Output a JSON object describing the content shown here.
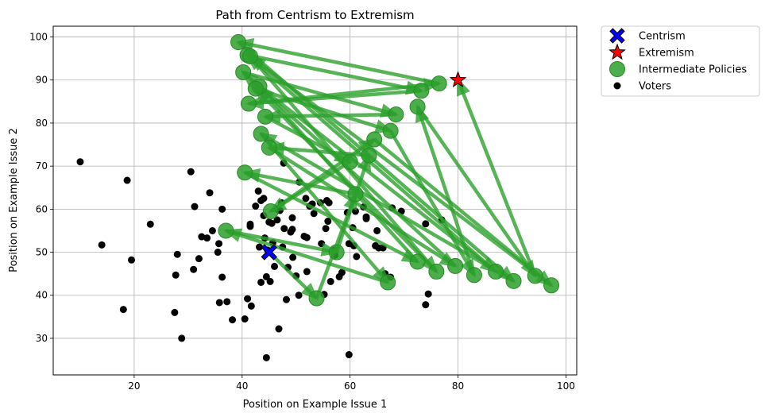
{
  "chart_data": {
    "type": "scatter",
    "title": "Path from Centrism to Extremism",
    "xlabel": "Position on Example Issue 1",
    "ylabel": "Position on Example Issue 2",
    "xlim": [
      5,
      102
    ],
    "ylim": [
      21.5,
      102.5
    ],
    "xticks": [
      20,
      40,
      60,
      80,
      100
    ],
    "yticks": [
      30,
      40,
      50,
      60,
      70,
      80,
      90,
      100
    ],
    "grid": true,
    "legend_position": "outside-top-right",
    "colors": {
      "centrism": "#0000ff",
      "extremism": "#ff0000",
      "intermediate": "#2ca02c",
      "voters": "#000000"
    },
    "legend": [
      {
        "key": "centrism",
        "label": "Centrism"
      },
      {
        "key": "extremism",
        "label": "Extremism"
      },
      {
        "key": "intermediate",
        "label": "Intermediate Policies"
      },
      {
        "key": "voters",
        "label": "Voters"
      }
    ],
    "centrism": [
      45,
      50
    ],
    "extremism": [
      80,
      90
    ],
    "path": [
      [
        45,
        50
      ],
      [
        53.8,
        39.3
      ],
      [
        61,
        63.5
      ],
      [
        40.5,
        68.5
      ],
      [
        72.5,
        47.8
      ],
      [
        43.2,
        88.5
      ],
      [
        87,
        45.5
      ],
      [
        41,
        95.8
      ],
      [
        73.2,
        87.5
      ],
      [
        41.2,
        84.5
      ],
      [
        76.5,
        89.2
      ],
      [
        39.3,
        98.8
      ],
      [
        90.3,
        43.3
      ],
      [
        43.5,
        77.5
      ],
      [
        67,
        43
      ],
      [
        37,
        55
      ],
      [
        57.5,
        50
      ],
      [
        63.5,
        72.5
      ],
      [
        45,
        74.3
      ],
      [
        79.5,
        46.8
      ],
      [
        40.2,
        91.8
      ],
      [
        68.5,
        82
      ],
      [
        44.3,
        81.5
      ],
      [
        60,
        71
      ],
      [
        45.3,
        59.5
      ],
      [
        64.5,
        76.2
      ],
      [
        97.3,
        42.3
      ],
      [
        41.5,
        95.5
      ],
      [
        76,
        45.5
      ],
      [
        42.5,
        88
      ],
      [
        67.5,
        78.2
      ],
      [
        83,
        44.7
      ],
      [
        72.5,
        83.8
      ],
      [
        94.3,
        44.5
      ],
      [
        80,
        90
      ]
    ],
    "voters": [
      [
        10,
        71
      ],
      [
        14,
        51.7
      ],
      [
        18,
        36.7
      ],
      [
        18.7,
        66.7
      ],
      [
        19.5,
        48.2
      ],
      [
        23,
        56.5
      ],
      [
        27.5,
        36
      ],
      [
        27.7,
        44.7
      ],
      [
        28,
        49.5
      ],
      [
        28.8,
        30
      ],
      [
        30.5,
        68.7
      ],
      [
        31,
        46
      ],
      [
        31.2,
        60.6
      ],
      [
        32,
        48.5
      ],
      [
        32.5,
        53.6
      ],
      [
        33.5,
        53.3
      ],
      [
        34,
        63.8
      ],
      [
        34.5,
        55
      ],
      [
        35.5,
        50
      ],
      [
        35.7,
        52
      ],
      [
        35.8,
        38.3
      ],
      [
        36.3,
        60
      ],
      [
        36.3,
        44.2
      ],
      [
        37.2,
        38.5
      ],
      [
        38.2,
        34.3
      ],
      [
        40.5,
        34.5
      ],
      [
        41,
        39.2
      ],
      [
        41.5,
        56.5
      ],
      [
        41.5,
        56
      ],
      [
        41.7,
        37.5
      ],
      [
        42.5,
        60.7
      ],
      [
        43,
        64.2
      ],
      [
        43.2,
        51.2
      ],
      [
        43.5,
        43
      ],
      [
        43.5,
        62
      ],
      [
        44,
        58.5
      ],
      [
        44,
        62.5
      ],
      [
        44.2,
        53.3
      ],
      [
        44.5,
        44.3
      ],
      [
        44.5,
        25.5
      ],
      [
        44.7,
        50.5
      ],
      [
        45,
        57
      ],
      [
        45.2,
        43.2
      ],
      [
        45.5,
        56.7
      ],
      [
        45.7,
        52.2
      ],
      [
        46,
        46.7
      ],
      [
        46.5,
        57.5
      ],
      [
        46.5,
        60
      ],
      [
        46.8,
        32.2
      ],
      [
        47,
        59.7
      ],
      [
        47.3,
        61.5
      ],
      [
        47.5,
        51.2
      ],
      [
        47.7,
        70.7
      ],
      [
        47.8,
        55.5
      ],
      [
        48.2,
        39
      ],
      [
        48.5,
        46.5
      ],
      [
        49,
        54.7
      ],
      [
        49.3,
        58
      ],
      [
        49.3,
        55.3
      ],
      [
        49.4,
        48.8
      ],
      [
        50,
        44.5
      ],
      [
        50.5,
        40
      ],
      [
        50.6,
        66.3
      ],
      [
        51.5,
        53.7
      ],
      [
        51.8,
        62.5
      ],
      [
        52,
        45.5
      ],
      [
        52,
        53.4
      ],
      [
        52.5,
        60.7
      ],
      [
        53,
        61.2
      ],
      [
        53.3,
        59
      ],
      [
        54.5,
        61.5
      ],
      [
        54.7,
        52
      ],
      [
        55.2,
        40.2
      ],
      [
        55.5,
        55.5
      ],
      [
        55.7,
        62
      ],
      [
        55.9,
        57.2
      ],
      [
        56.1,
        61.5
      ],
      [
        56.4,
        43.2
      ],
      [
        57,
        50.5
      ],
      [
        57.2,
        49.3
      ],
      [
        58,
        44.3
      ],
      [
        58.5,
        45.3
      ],
      [
        59.5,
        59.2
      ],
      [
        59.8,
        26.2
      ],
      [
        59.8,
        52
      ],
      [
        60.5,
        55.7
      ],
      [
        60.7,
        51.5
      ],
      [
        61,
        59.5
      ],
      [
        61.2,
        49
      ],
      [
        62.5,
        60.5
      ],
      [
        63,
        58.2
      ],
      [
        63,
        57.8
      ],
      [
        64.7,
        51.5
      ],
      [
        65,
        55
      ],
      [
        65.3,
        51
      ],
      [
        66.1,
        51
      ],
      [
        66.5,
        45
      ],
      [
        67.5,
        44.2
      ],
      [
        67.8,
        60.3
      ],
      [
        69.5,
        59.5
      ],
      [
        74,
        56.6
      ],
      [
        74,
        37.8
      ],
      [
        74.5,
        40.3
      ],
      [
        77,
        57.5
      ]
    ]
  }
}
